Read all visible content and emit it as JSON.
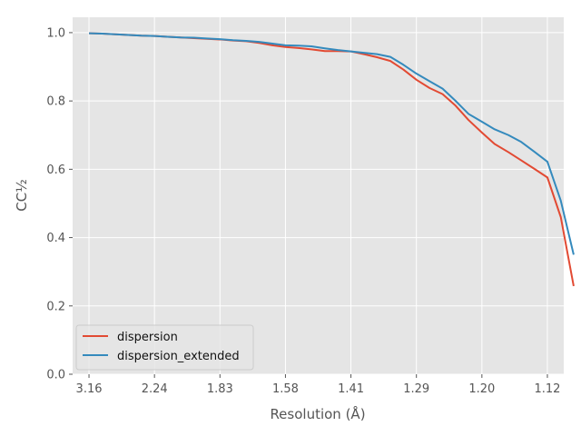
{
  "chart_data": {
    "type": "line",
    "xlabel": "Resolution (Å)",
    "ylabel": "CC½",
    "x_tick_labels": [
      "3.16",
      "2.24",
      "1.83",
      "1.58",
      "1.41",
      "1.29",
      "1.20",
      "1.12"
    ],
    "x_ticks_inv_d2": [
      0.1,
      0.2,
      0.3,
      0.4,
      0.5,
      0.6,
      0.7,
      0.8
    ],
    "y_ticks": [
      0.0,
      0.2,
      0.4,
      0.6,
      0.8,
      1.0
    ],
    "y_tick_labels": [
      "0.0",
      "0.2",
      "0.4",
      "0.6",
      "0.8",
      "1.0"
    ],
    "ylim": [
      0.0,
      1.045
    ],
    "grid": true,
    "legend_position": "lower-left",
    "series": [
      {
        "name": "dispersion",
        "color": "#E24A33",
        "points": [
          [
            3.162,
            0.998
          ],
          [
            2.887,
            0.997
          ],
          [
            2.673,
            0.995
          ],
          [
            2.5,
            0.993
          ],
          [
            2.357,
            0.991
          ],
          [
            2.236,
            0.99
          ],
          [
            2.132,
            0.988
          ],
          [
            2.041,
            0.986
          ],
          [
            1.961,
            0.984
          ],
          [
            1.89,
            0.982
          ],
          [
            1.826,
            0.98
          ],
          [
            1.768,
            0.977
          ],
          [
            1.715,
            0.975
          ],
          [
            1.667,
            0.97
          ],
          [
            1.622,
            0.963
          ],
          [
            1.581,
            0.958
          ],
          [
            1.543,
            0.955
          ],
          [
            1.508,
            0.951
          ],
          [
            1.474,
            0.946
          ],
          [
            1.443,
            0.946
          ],
          [
            1.414,
            0.945
          ],
          [
            1.387,
            0.937
          ],
          [
            1.361,
            0.928
          ],
          [
            1.336,
            0.917
          ],
          [
            1.313,
            0.892
          ],
          [
            1.291,
            0.862
          ],
          [
            1.27,
            0.838
          ],
          [
            1.25,
            0.82
          ],
          [
            1.231,
            0.786
          ],
          [
            1.213,
            0.744
          ],
          [
            1.195,
            0.707
          ],
          [
            1.179,
            0.674
          ],
          [
            1.162,
            0.65
          ],
          [
            1.147,
            0.626
          ],
          [
            1.132,
            0.601
          ],
          [
            1.118,
            0.576
          ],
          [
            1.104,
            0.46
          ],
          [
            1.091,
            0.258
          ]
        ]
      },
      {
        "name": "dispersion_extended",
        "color": "#348ABD",
        "points": [
          [
            3.162,
            0.998
          ],
          [
            2.887,
            0.997
          ],
          [
            2.673,
            0.995
          ],
          [
            2.5,
            0.993
          ],
          [
            2.357,
            0.991
          ],
          [
            2.236,
            0.99
          ],
          [
            2.132,
            0.988
          ],
          [
            2.041,
            0.986
          ],
          [
            1.961,
            0.985
          ],
          [
            1.89,
            0.983
          ],
          [
            1.826,
            0.981
          ],
          [
            1.768,
            0.978
          ],
          [
            1.715,
            0.976
          ],
          [
            1.667,
            0.973
          ],
          [
            1.622,
            0.968
          ],
          [
            1.581,
            0.963
          ],
          [
            1.543,
            0.962
          ],
          [
            1.508,
            0.96
          ],
          [
            1.474,
            0.954
          ],
          [
            1.443,
            0.949
          ],
          [
            1.414,
            0.945
          ],
          [
            1.387,
            0.941
          ],
          [
            1.361,
            0.937
          ],
          [
            1.336,
            0.929
          ],
          [
            1.313,
            0.906
          ],
          [
            1.291,
            0.88
          ],
          [
            1.27,
            0.858
          ],
          [
            1.25,
            0.836
          ],
          [
            1.231,
            0.8
          ],
          [
            1.213,
            0.762
          ],
          [
            1.195,
            0.739
          ],
          [
            1.179,
            0.717
          ],
          [
            1.162,
            0.7
          ],
          [
            1.147,
            0.68
          ],
          [
            1.132,
            0.651
          ],
          [
            1.118,
            0.622
          ],
          [
            1.104,
            0.508
          ],
          [
            1.091,
            0.35
          ]
        ]
      }
    ]
  }
}
